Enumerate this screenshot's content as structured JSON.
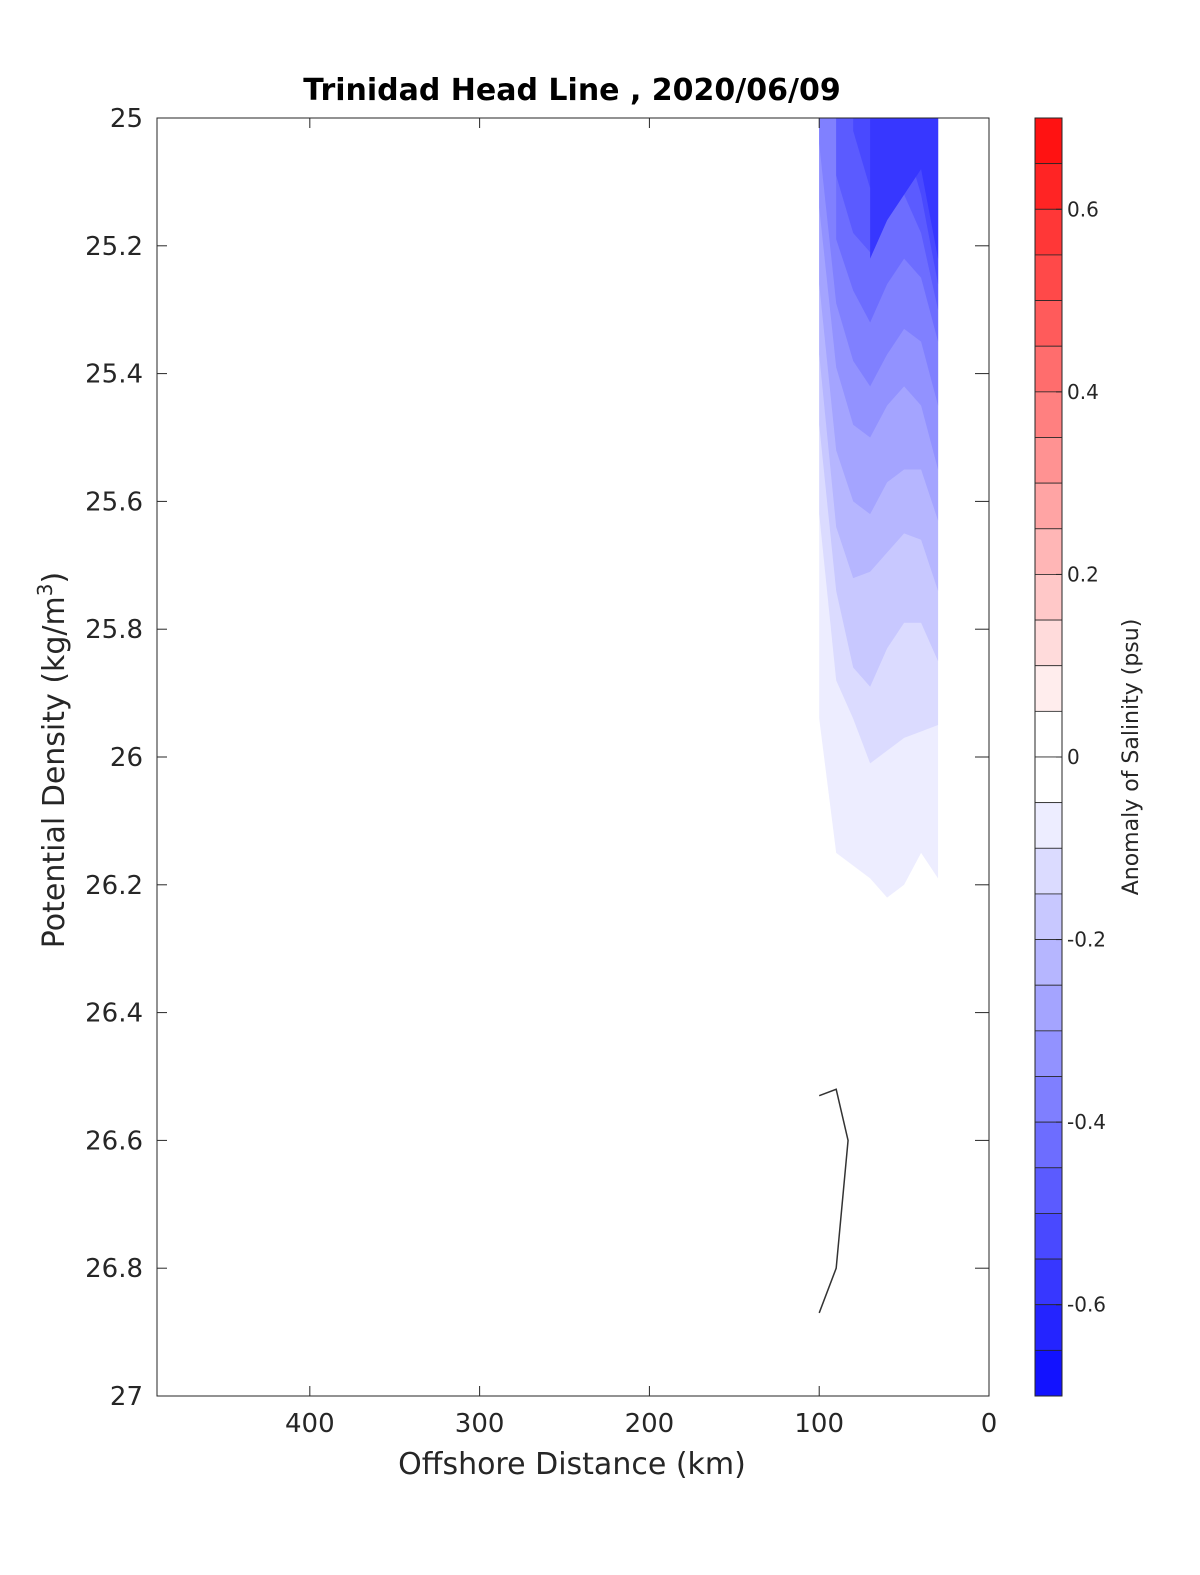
{
  "chart_data": {
    "type": "heatmap",
    "subtype": "filled-contour section",
    "title": "Trinidad Head Line , 2020/06/09",
    "xlabel": "Offshore Distance (km)",
    "ylabel_prefix": "Potential Density (kg/m",
    "ylabel_sup": "3",
    "ylabel_suffix": ")",
    "xlim": [
      490,
      0
    ],
    "x_reversed": true,
    "ylim": [
      25,
      27
    ],
    "y_reversed": true,
    "x_ticks": [
      400,
      300,
      200,
      100,
      0
    ],
    "y_ticks": [
      25,
      25.2,
      25.4,
      25.6,
      25.8,
      26,
      26.2,
      26.4,
      26.6,
      26.8,
      27
    ],
    "colorbar": {
      "label": "Anomaly of Salinity (psu)",
      "range": [
        -0.7,
        0.7
      ],
      "step": 0.05,
      "ticks": [
        0.6,
        0.4,
        0.2,
        0,
        -0.2,
        -0.4,
        -0.6
      ],
      "colormap": "blue-white-red",
      "positive_color": "#ff0000",
      "negative_color": "#0000ff"
    },
    "station_x": [
      100,
      90,
      80,
      70,
      60,
      50,
      40,
      30
    ],
    "contour_regions": [
      {
        "level": -0.05,
        "upper": 25,
        "lower": [
          25.94,
          26.15,
          26.17,
          26.19,
          26.22,
          26.2,
          26.15,
          26.19
        ]
      },
      {
        "level": -0.1,
        "upper": 25,
        "lower": [
          25.62,
          25.88,
          25.94,
          26.01,
          25.99,
          25.97,
          25.96,
          25.95
        ]
      },
      {
        "level": -0.15,
        "upper": 25,
        "lower": [
          25.48,
          25.74,
          25.86,
          25.89,
          25.83,
          25.79,
          25.79,
          25.85
        ]
      },
      {
        "level": -0.2,
        "upper": 25,
        "lower": [
          25.37,
          25.64,
          25.72,
          25.71,
          25.68,
          25.65,
          25.66,
          25.74
        ]
      },
      {
        "level": -0.25,
        "upper": 25,
        "lower": [
          25.26,
          25.52,
          25.6,
          25.62,
          25.57,
          25.55,
          25.55,
          25.63
        ]
      },
      {
        "level": -0.3,
        "upper": 25,
        "lower": [
          25.14,
          25.39,
          25.48,
          25.5,
          25.45,
          25.42,
          25.45,
          25.55
        ]
      },
      {
        "level": -0.35,
        "upper": 25,
        "lower": [
          25.04,
          25.29,
          25.38,
          25.42,
          25.37,
          25.33,
          25.35,
          25.45
        ]
      },
      {
        "level": -0.4,
        "upper": 25,
        "lower": [
          null,
          25.19,
          25.27,
          25.32,
          25.26,
          25.22,
          25.25,
          25.35
        ]
      },
      {
        "level": -0.45,
        "upper": 25,
        "lower": [
          null,
          25.09,
          25.18,
          25.21,
          25.14,
          25.12,
          25.18,
          25.3
        ]
      },
      {
        "level": -0.5,
        "upper": 25,
        "lower": [
          null,
          null,
          25.02,
          25.11,
          25.04,
          25.03,
          25.12,
          25.26
        ]
      },
      {
        "level": -0.55,
        "upper": 25,
        "lower": [
          null,
          null,
          null,
          25.22,
          25.16,
          null,
          25.08,
          25.22
        ]
      }
    ],
    "contour_line": {
      "x": [
        100,
        90,
        83,
        90,
        100
      ],
      "y": [
        26.53,
        26.52,
        26.6,
        26.8,
        26.87
      ]
    }
  }
}
